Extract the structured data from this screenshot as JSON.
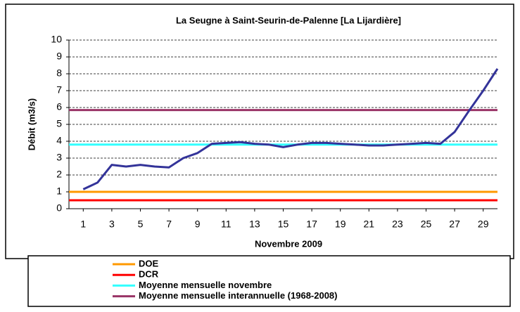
{
  "chart_data": {
    "type": "line",
    "title": "La Seugne à Saint-Seurin-de-Palenne [La Lijardière]",
    "x_label": "Novembre 2009",
    "y_label": "Débit (m3/s)",
    "x": [
      1,
      2,
      3,
      4,
      5,
      6,
      7,
      8,
      9,
      10,
      11,
      12,
      13,
      14,
      15,
      16,
      17,
      18,
      19,
      20,
      21,
      22,
      23,
      24,
      25,
      26,
      27,
      28,
      29,
      30
    ],
    "series": [
      {
        "color": "#333399",
        "values": [
          1.15,
          1.55,
          2.6,
          2.5,
          2.6,
          2.5,
          2.45,
          3.0,
          3.3,
          3.85,
          3.9,
          3.95,
          3.85,
          3.8,
          3.65,
          3.8,
          3.9,
          3.9,
          3.85,
          3.8,
          3.75,
          3.75,
          3.8,
          3.85,
          3.9,
          3.85,
          4.55,
          5.8,
          7.0,
          8.3
        ]
      }
    ],
    "hlines": [
      {
        "name": "DOE",
        "color": "#ff9900",
        "value": 1
      },
      {
        "name": "DCR",
        "color": "#ff0000",
        "value": 0.5
      },
      {
        "name": "Moyenne mensuelle novembre",
        "color": "#33ffff",
        "value": 3.8
      },
      {
        "name": "Moyenne mensuelle interannuelle (1968-2008)",
        "color": "#993366",
        "value": 5.85
      }
    ],
    "xlim": [
      0,
      30
    ],
    "xticks": [
      1,
      3,
      5,
      7,
      9,
      11,
      13,
      15,
      17,
      19,
      21,
      23,
      25,
      27,
      29
    ],
    "ylim": [
      0,
      10
    ],
    "yticks": [
      0,
      1,
      2,
      3,
      4,
      5,
      6,
      7,
      8,
      9,
      10
    ],
    "grid": true
  }
}
